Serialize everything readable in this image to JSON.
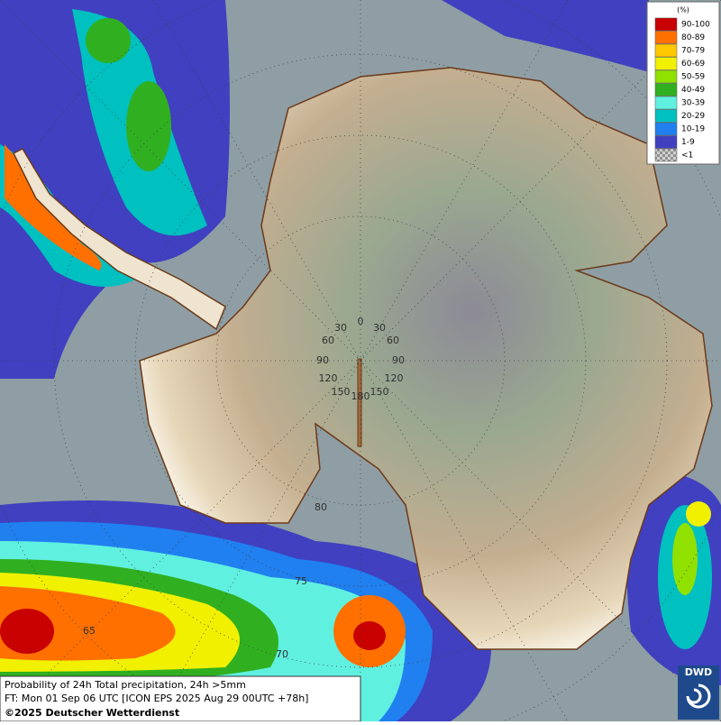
{
  "legend": {
    "title": "(%)",
    "items": [
      {
        "label": "90-100",
        "color": "#c80000"
      },
      {
        "label": "80-89",
        "color": "#ff7000"
      },
      {
        "label": "70-79",
        "color": "#ffc800"
      },
      {
        "label": "60-69",
        "color": "#f0f000"
      },
      {
        "label": "50-59",
        "color": "#90e000"
      },
      {
        "label": "40-49",
        "color": "#30b020"
      },
      {
        "label": "30-39",
        "color": "#60f0e0"
      },
      {
        "label": "20-29",
        "color": "#00c0c0"
      },
      {
        "label": "10-19",
        "color": "#2080f0"
      },
      {
        "label": "1-9",
        "color": "#4040c0"
      },
      {
        "label": "<1",
        "color": "#b0b0b0"
      }
    ]
  },
  "graticule": {
    "longitudes": [
      "0",
      "30",
      "30",
      "60",
      "60",
      "90",
      "90",
      "120",
      "120",
      "150",
      "150",
      "180"
    ],
    "latitudes": [
      "80",
      "75",
      "70",
      "65"
    ]
  },
  "info": {
    "line1": "Probability of 24h Total precipitation, 24h >5mm",
    "line2": "FT: Mon 01 Sep 06 UTC [ICON EPS 2025 Aug 29 00UTC +78h]",
    "line3": "©2025 Deutscher Wetterdienst"
  },
  "logo": "DWD"
}
